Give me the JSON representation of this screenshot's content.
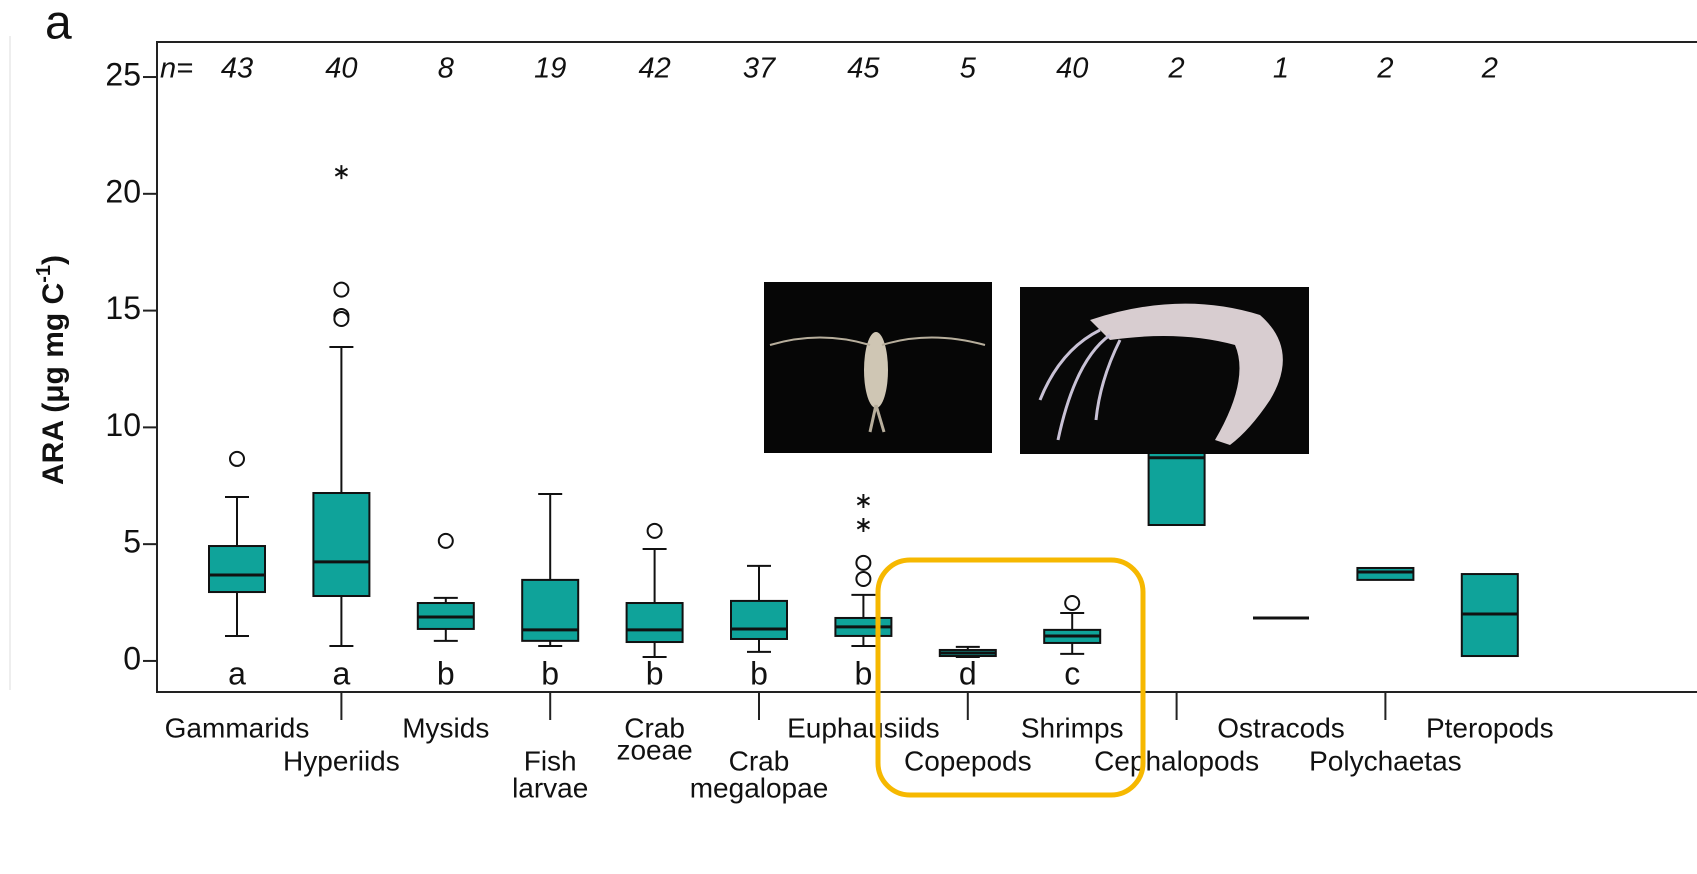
{
  "chart_data": {
    "type": "box",
    "panel_label": "a",
    "ylabel": "ARA (μg mg C",
    "ylabel_sup": "-1",
    "ylabel_end": ")",
    "n_label": "n=",
    "n": [
      43,
      40,
      8,
      19,
      42,
      37,
      45,
      5,
      40,
      2,
      1,
      2,
      2
    ],
    "categories": [
      [
        "Gammarids"
      ],
      [
        "Hyperiids"
      ],
      [
        "Mysids"
      ],
      [
        "Fish",
        "larvae"
      ],
      [
        "Crab",
        "zoeae"
      ],
      [
        "Crab",
        "megalopae"
      ],
      [
        "Euphausiids"
      ],
      [
        "Copepods"
      ],
      [
        "Shrimps"
      ],
      [
        "Cephalopods"
      ],
      [
        "Ostracods"
      ],
      [
        "Polychaetas"
      ],
      [
        "Pteropods"
      ]
    ],
    "letters": [
      "a",
      "a",
      "b",
      "b",
      "b",
      "b",
      "b",
      "d",
      "c",
      null,
      null,
      null,
      null
    ],
    "color": "#0fa39a",
    "boxes": [
      {
        "low": 1.07,
        "q1": 2.95,
        "median": 3.68,
        "q3": 4.92,
        "high": 7.02,
        "outliers": [
          8.65
        ],
        "extremes": []
      },
      {
        "low": 0.64,
        "q1": 2.78,
        "median": 4.24,
        "q3": 7.19,
        "high": 13.44,
        "outliers": [
          15.9,
          14.77,
          14.64
        ],
        "extremes": [
          20.93
        ]
      },
      {
        "low": 0.86,
        "q1": 1.37,
        "median": 1.88,
        "q3": 2.48,
        "high": 2.7,
        "outliers": [
          5.14
        ],
        "extremes": []
      },
      {
        "low": 0.64,
        "q1": 0.86,
        "median": 1.33,
        "q3": 3.47,
        "high": 7.15,
        "outliers": [],
        "extremes": []
      },
      {
        "low": 0.17,
        "q1": 0.81,
        "median": 1.33,
        "q3": 2.48,
        "high": 4.79,
        "outliers": [
          5.57
        ],
        "extremes": []
      },
      {
        "low": 0.39,
        "q1": 0.94,
        "median": 1.37,
        "q3": 2.57,
        "high": 4.07,
        "outliers": [],
        "extremes": []
      },
      {
        "low": 0.64,
        "q1": 1.07,
        "median": 1.46,
        "q3": 1.84,
        "high": 2.83,
        "outliers": [
          3.51,
          4.2
        ],
        "extremes": [
          5.82,
          6.85
        ]
      },
      {
        "low": 0.17,
        "q1": 0.21,
        "median": 0.34,
        "q3": 0.47,
        "high": 0.6,
        "outliers": [],
        "extremes": []
      },
      {
        "low": 0.3,
        "q1": 0.77,
        "median": 1.07,
        "q3": 1.33,
        "high": 2.05,
        "outliers": [
          2.48
        ],
        "extremes": []
      },
      {
        "low": 5.82,
        "q1": 5.82,
        "median": 8.7,
        "q3": 11.6,
        "high": 11.6,
        "outliers": [],
        "extremes": []
      },
      {
        "low": 1.84,
        "q1": 1.84,
        "median": 1.84,
        "q3": 1.84,
        "high": 1.84,
        "outliers": [],
        "extremes": []
      },
      {
        "low": 3.47,
        "q1": 3.47,
        "median": 3.81,
        "q3": 3.98,
        "high": 3.98,
        "outliers": [],
        "extremes": []
      },
      {
        "low": 0.21,
        "q1": 0.21,
        "median": 2.01,
        "q3": 3.72,
        "high": 3.72,
        "outliers": [],
        "extremes": []
      }
    ],
    "ylim": [
      -1.33,
      26.5
    ],
    "yticks": [
      0,
      5,
      10,
      15,
      20,
      25
    ]
  }
}
